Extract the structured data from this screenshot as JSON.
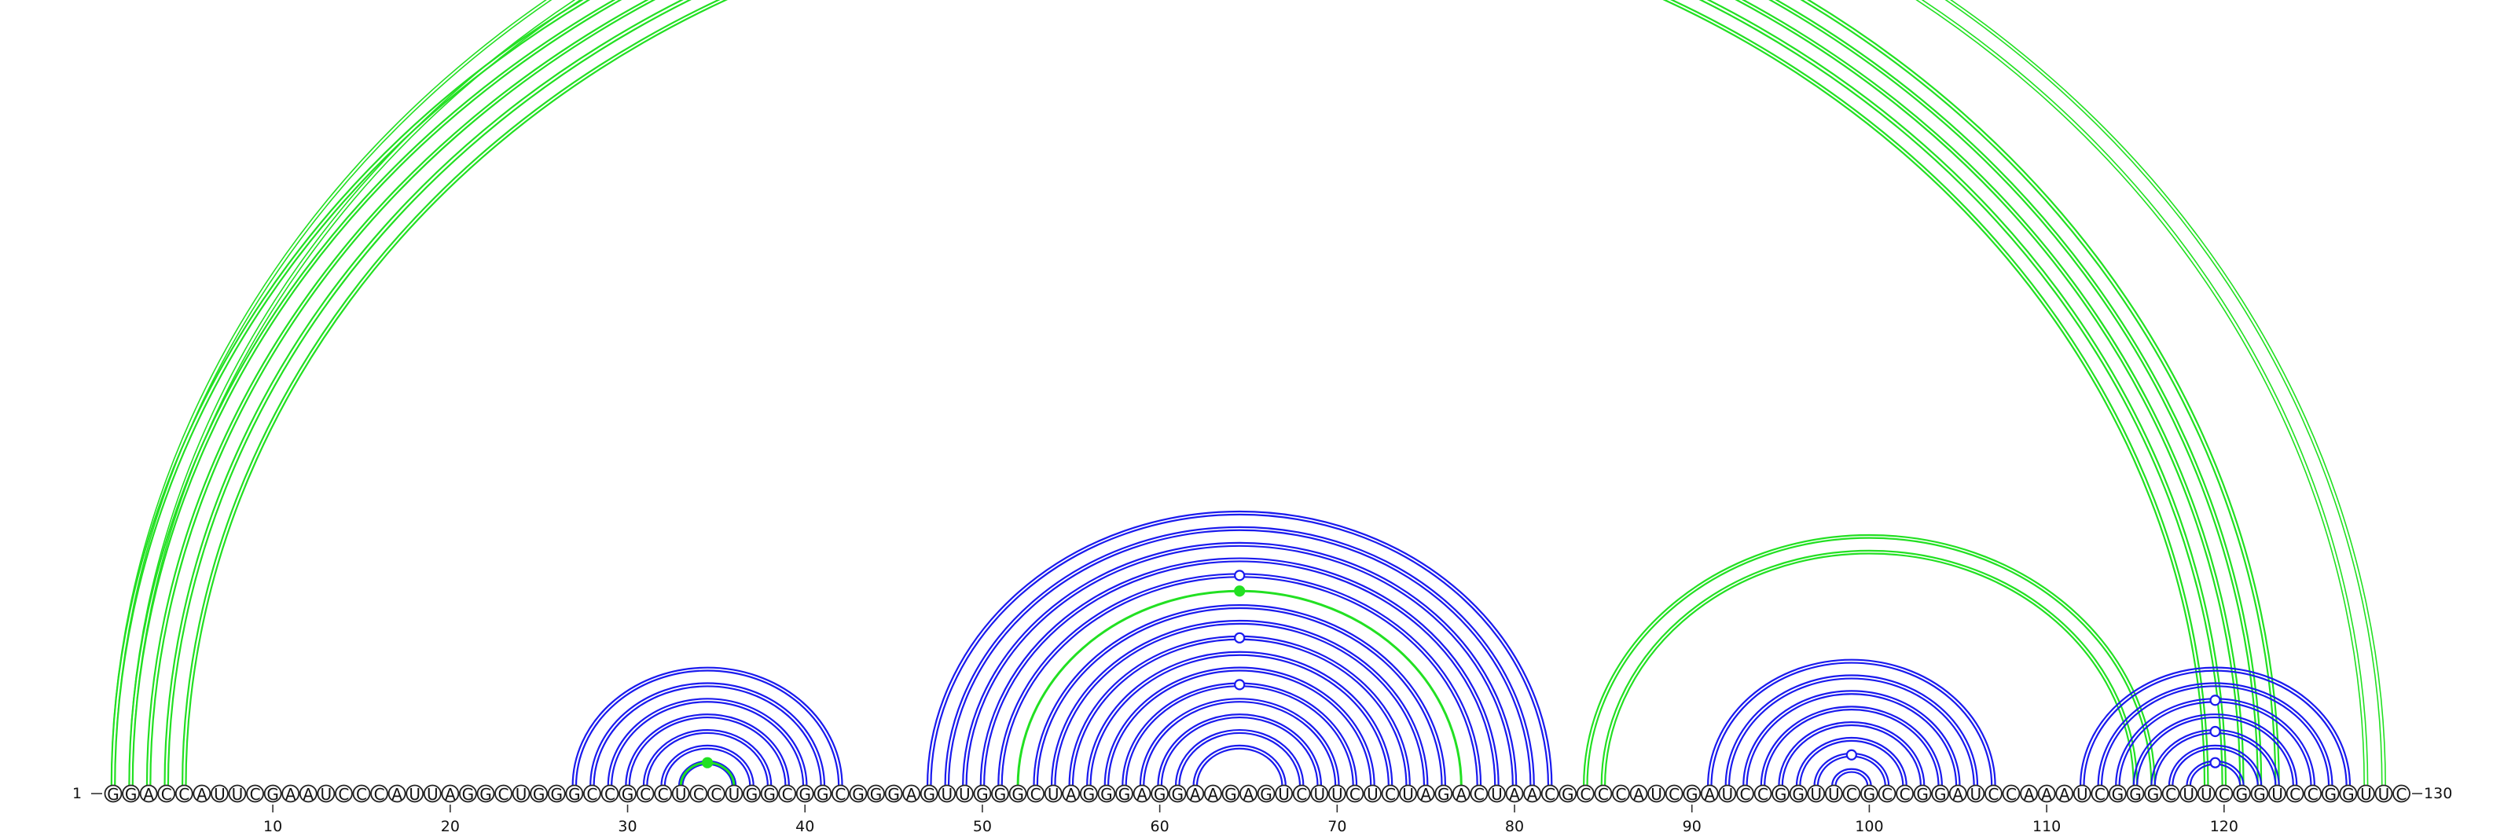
{
  "sequence": {
    "start_label": "1",
    "end_label": "130",
    "letters": [
      "G",
      "G",
      "A",
      "C",
      "C",
      "A",
      "U",
      "U",
      "C",
      "G",
      "A",
      "A",
      "U",
      "C",
      "C",
      "C",
      "A",
      "U",
      "U",
      "A",
      "G",
      "G",
      "C",
      "U",
      "G",
      "G",
      "G",
      "C",
      "C",
      "G",
      "C",
      "C",
      "U",
      "C",
      "C",
      "U",
      "G",
      "G",
      "C",
      "G",
      "G",
      "C",
      "G",
      "G",
      "G",
      "A",
      "G",
      "U",
      "U",
      "G",
      "G",
      "G",
      "C",
      "U",
      "A",
      "G",
      "G",
      "G",
      "A",
      "G",
      "G",
      "A",
      "A",
      "G",
      "A",
      "G",
      "U",
      "C",
      "U",
      "U",
      "C",
      "U",
      "C",
      "U",
      "A",
      "G",
      "A",
      "C",
      "U",
      "A",
      "A",
      "C",
      "G",
      "C",
      "C",
      "C",
      "A",
      "U",
      "C",
      "G",
      "A",
      "U",
      "C",
      "C",
      "G",
      "G",
      "U",
      "U",
      "C",
      "G",
      "C",
      "C",
      "G",
      "G",
      "A",
      "U",
      "C",
      "C",
      "A",
      "A",
      "A",
      "U",
      "C",
      "G",
      "G",
      "G",
      "C",
      "U",
      "U",
      "C",
      "G",
      "G",
      "U",
      "C",
      "C",
      "G",
      "G",
      "U",
      "U",
      "C"
    ]
  },
  "ticks": [
    {
      "position": 10,
      "label": "10"
    },
    {
      "position": 20,
      "label": "20"
    },
    {
      "position": 30,
      "label": "30"
    },
    {
      "position": 40,
      "label": "40"
    },
    {
      "position": 50,
      "label": "50"
    },
    {
      "position": 60,
      "label": "60"
    },
    {
      "position": 70,
      "label": "70"
    },
    {
      "position": 80,
      "label": "80"
    },
    {
      "position": 90,
      "label": "90"
    },
    {
      "position": 100,
      "label": "100"
    },
    {
      "position": 110,
      "label": "110"
    },
    {
      "position": 120,
      "label": "120"
    }
  ],
  "colors": {
    "green": "#22e022",
    "blue": "#1a1aee"
  },
  "arc_groups": [
    {
      "name": "long-range-helix",
      "color": "green",
      "pairs": [
        [
          1,
          123
        ],
        [
          2,
          122
        ],
        [
          3,
          121
        ],
        [
          4,
          120
        ],
        [
          5,
          119
        ]
      ],
      "style": "double",
      "marker": {
        "shape": "ring"
      }
    },
    {
      "name": "long-range-single",
      "color": "green",
      "pairs": [
        [
          1,
          129
        ],
        [
          2,
          128
        ]
      ],
      "style": "double-thin"
    },
    {
      "name": "stem-28-42",
      "color": "blue",
      "pairs": [
        [
          27,
          42
        ],
        [
          28,
          41
        ],
        [
          29,
          40
        ],
        [
          30,
          39
        ],
        [
          31,
          38
        ],
        [
          32,
          37
        ],
        [
          33,
          36
        ]
      ],
      "style": "double"
    },
    {
      "name": "inner-33-36",
      "color": "green",
      "pairs": [
        [
          33,
          36
        ]
      ],
      "style": "single",
      "marker": {
        "shape": "dot"
      }
    },
    {
      "name": "stem-47-82",
      "color": "blue",
      "pairs": [
        [
          47,
          82
        ],
        [
          48,
          81
        ],
        [
          49,
          80
        ],
        [
          50,
          79
        ],
        [
          51,
          78
        ],
        [
          53,
          76
        ],
        [
          54,
          75
        ],
        [
          55,
          74
        ],
        [
          56,
          73
        ],
        [
          57,
          72
        ],
        [
          58,
          71
        ],
        [
          59,
          70
        ],
        [
          60,
          69
        ],
        [
          61,
          68
        ],
        [
          62,
          67
        ]
      ],
      "style": "double",
      "markers": [
        {
          "pair": [
            51,
            78
          ],
          "shape": "ring"
        },
        {
          "pair": [
            55,
            74
          ],
          "shape": "ring"
        },
        {
          "pair": [
            58,
            71
          ],
          "shape": "ring"
        }
      ]
    },
    {
      "name": "green-52-77",
      "color": "green",
      "pairs": [
        [
          52,
          77
        ]
      ],
      "style": "single",
      "marker": {
        "shape": "dot"
      }
    },
    {
      "name": "pseudoknot-85-116",
      "color": "green",
      "pairs": [
        [
          84,
          116
        ],
        [
          85,
          115
        ]
      ],
      "style": "double"
    },
    {
      "name": "stem-91-107",
      "color": "blue",
      "pairs": [
        [
          91,
          107
        ],
        [
          92,
          106
        ],
        [
          93,
          105
        ],
        [
          94,
          104
        ],
        [
          95,
          103
        ],
        [
          96,
          102
        ],
        [
          97,
          101
        ],
        [
          98,
          100
        ]
      ],
      "style": "double",
      "markers": [
        {
          "pair": [
            97,
            101
          ],
          "shape": "ring"
        }
      ]
    },
    {
      "name": "stem-112-127",
      "color": "blue",
      "pairs": [
        [
          112,
          127
        ],
        [
          113,
          126
        ],
        [
          114,
          125
        ],
        [
          115,
          124
        ],
        [
          116,
          123
        ],
        [
          117,
          122
        ],
        [
          118,
          121
        ]
      ],
      "style": "double",
      "markers": [
        {
          "pair": [
            114,
            125
          ],
          "shape": "ring"
        },
        {
          "pair": [
            116,
            123
          ],
          "shape": "ring"
        },
        {
          "pair": [
            118,
            121
          ],
          "shape": "ring"
        }
      ]
    }
  ]
}
